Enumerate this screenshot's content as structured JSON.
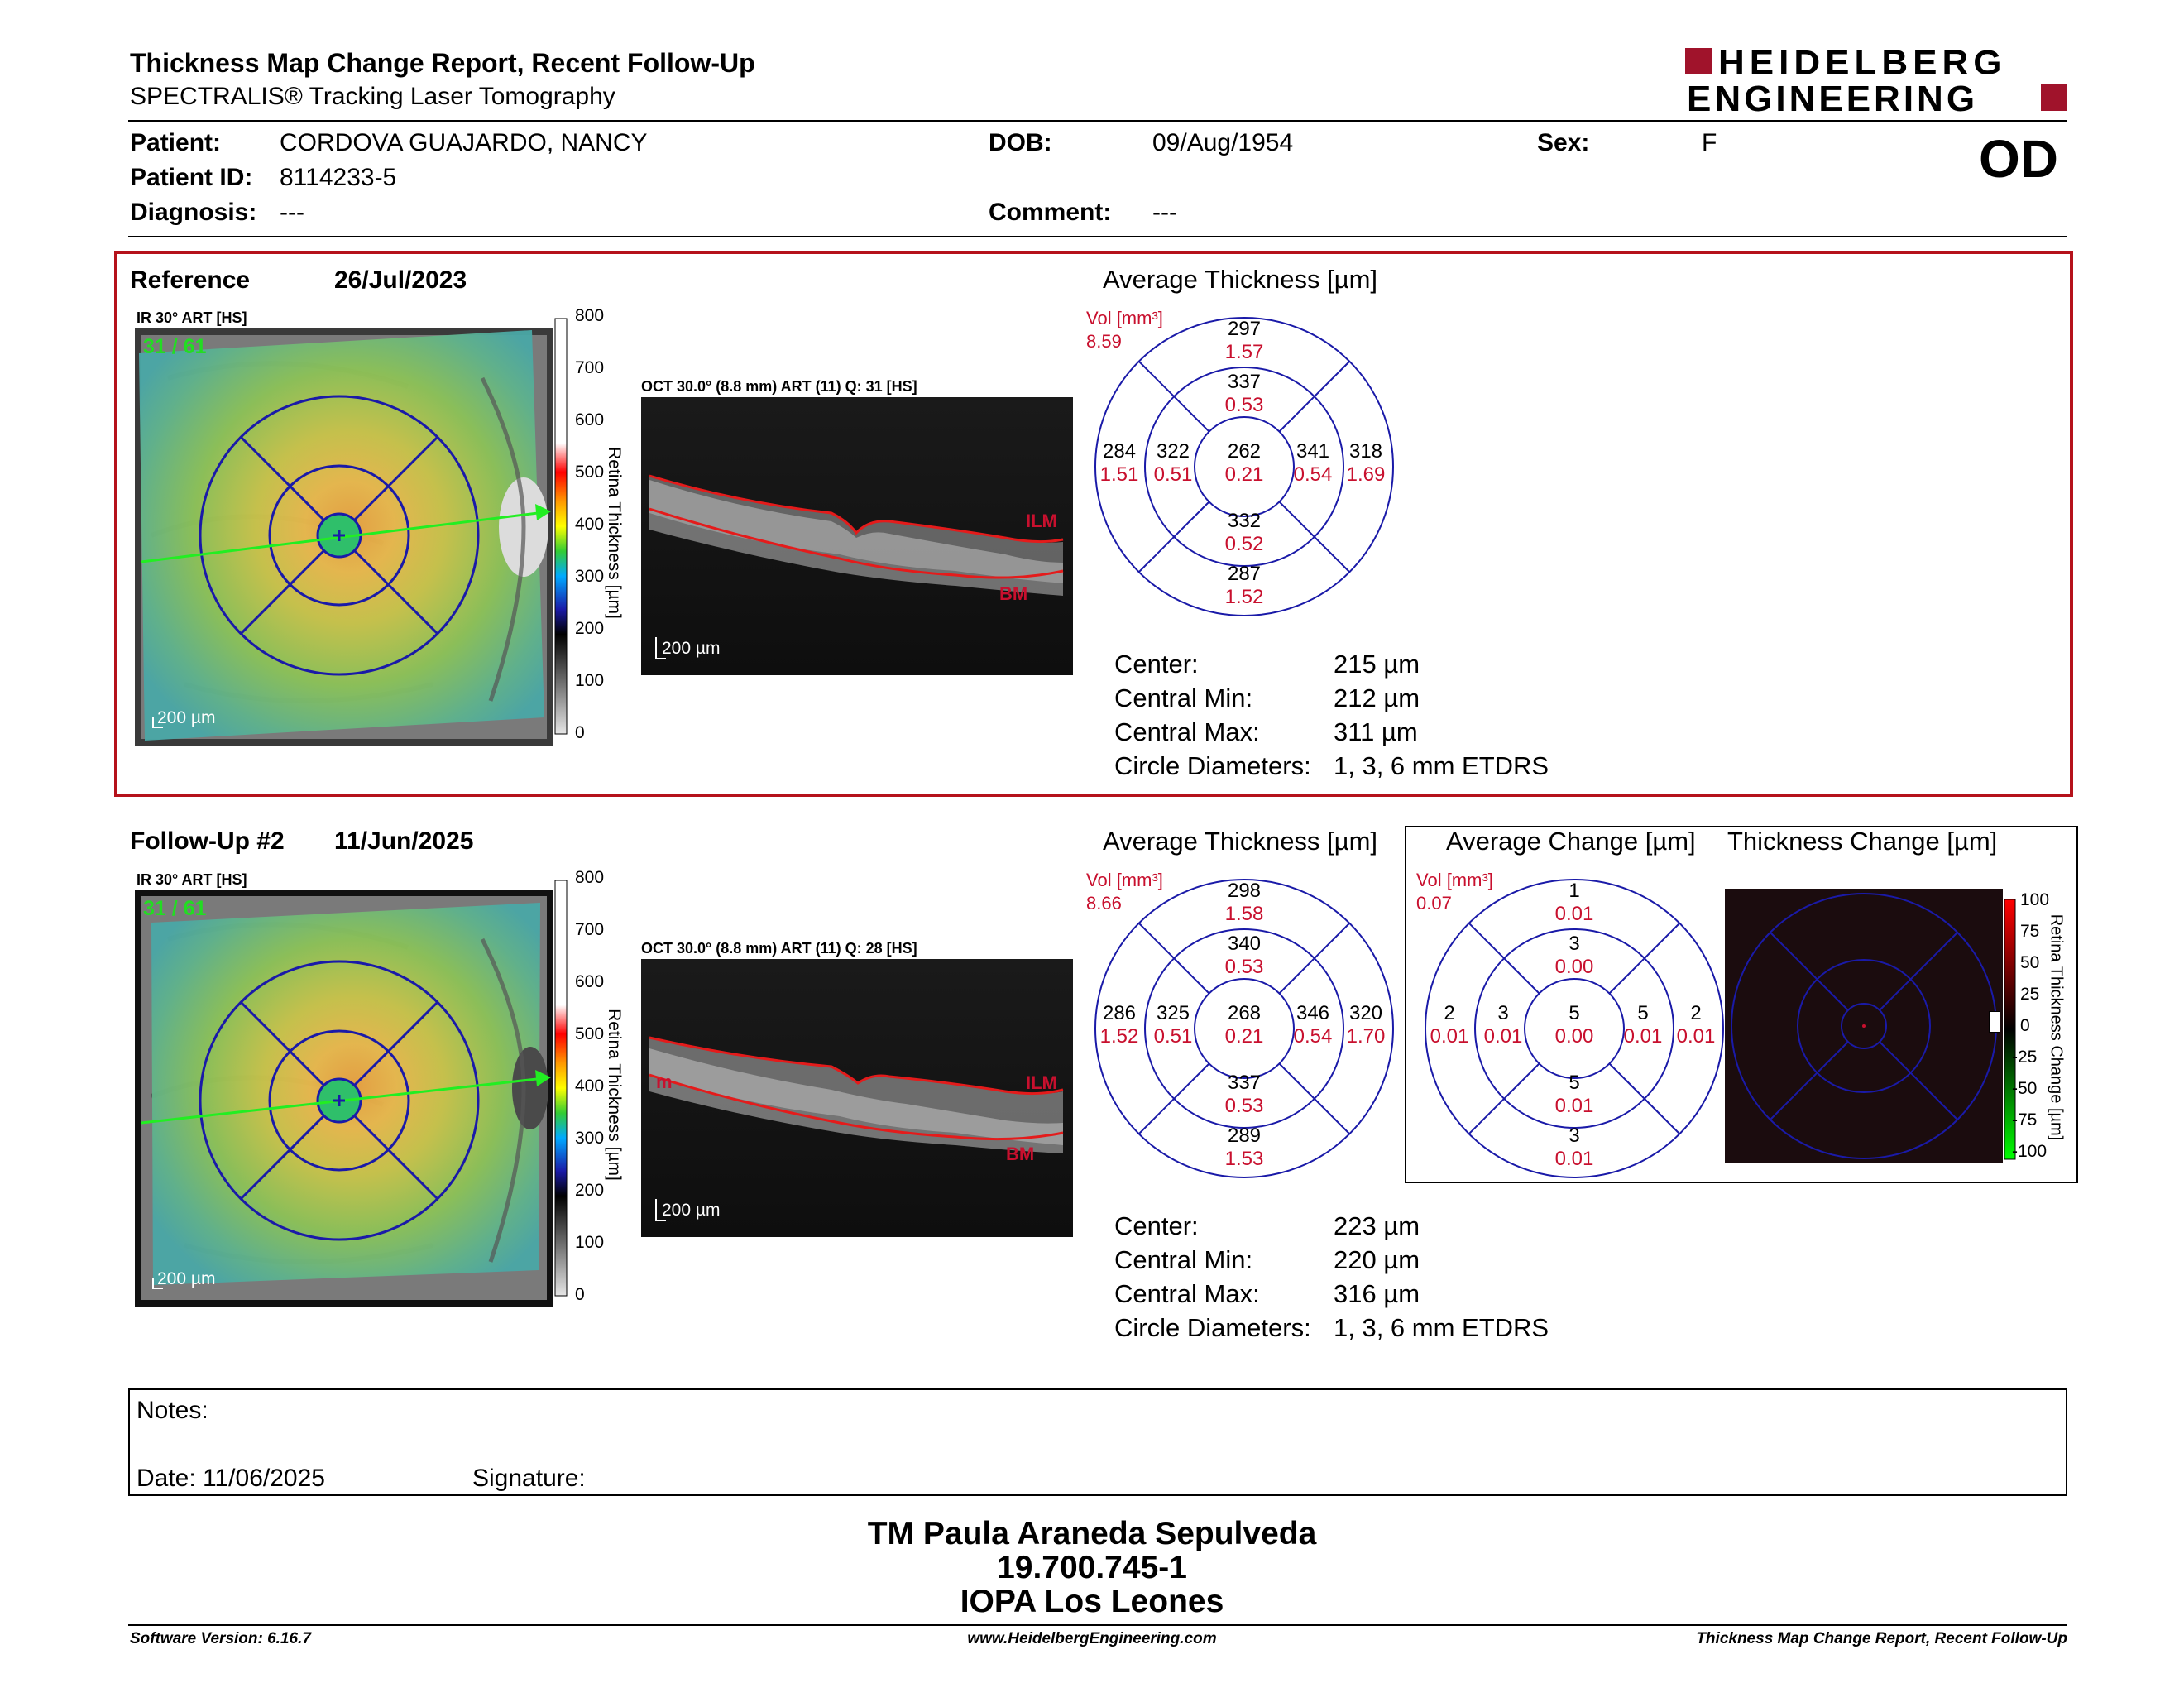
{
  "header": {
    "title": "Thickness Map Change Report, Recent Follow-Up",
    "subtitle": "SPECTRALIS® Tracking Laser Tomography",
    "logo_line1": "HEIDELBERG",
    "logo_line2": "ENGINEERING",
    "eye": "OD"
  },
  "patient": {
    "patient_label": "Patient:",
    "patient_value": "CORDOVA GUAJARDO, NANCY",
    "dob_label": "DOB:",
    "dob_value": "09/Aug/1954",
    "sex_label": "Sex:",
    "sex_value": "F",
    "id_label": "Patient ID:",
    "id_value": "8114233-5",
    "diag_label": "Diagnosis:",
    "diag_value": "---",
    "comment_label": "Comment:",
    "comment_value": "---"
  },
  "reference": {
    "label": "Reference",
    "date": "26/Jul/2023",
    "ir_label": "IR 30° ART [HS]",
    "ir_counter": "31 / 61",
    "ir_scale": "200 µm",
    "oct_label": "OCT 30.0° (8.8 mm) ART (11) Q: 31 [HS]",
    "oct_scale": "200 µm",
    "ilm": "ILM",
    "bm": "BM",
    "avg_title": "Average Thickness [µm]",
    "vol_label": "Vol [mm³]",
    "vol_value": "8.59",
    "grid": {
      "outer_top": "297",
      "outer_top_v": "1.57",
      "inner_top": "337",
      "inner_top_v": "0.53",
      "outer_left": "284",
      "outer_left_v": "1.51",
      "inner_left": "322",
      "inner_left_v": "0.51",
      "center": "262",
      "center_v": "0.21",
      "inner_right": "341",
      "inner_right_v": "0.54",
      "outer_right": "318",
      "outer_right_v": "1.69",
      "inner_bottom": "332",
      "inner_bottom_v": "0.52",
      "outer_bottom": "287",
      "outer_bottom_v": "1.52"
    },
    "stats": {
      "center_label": "Center:",
      "center": "215 µm",
      "min_label": "Central Min:",
      "min": "212 µm",
      "max_label": "Central Max:",
      "max": "311 µm",
      "circ_label": "Circle Diameters:",
      "circ": "1, 3, 6 mm ETDRS"
    }
  },
  "followup": {
    "label": "Follow-Up #2",
    "date": "11/Jun/2025",
    "ir_label": "IR 30° ART [HS]",
    "ir_counter": "31 / 61",
    "ir_scale": "200 µm",
    "oct_label": "OCT 30.0° (8.8 mm) ART (11) Q: 28 [HS]",
    "oct_scale": "200 µm",
    "ilm": "ILM",
    "bm": "BM",
    "m": "m",
    "avg_title": "Average Thickness [µm]",
    "vol_label": "Vol [mm³]",
    "vol_value": "8.66",
    "grid": {
      "outer_top": "298",
      "outer_top_v": "1.58",
      "inner_top": "340",
      "inner_top_v": "0.53",
      "outer_left": "286",
      "outer_left_v": "1.52",
      "inner_left": "325",
      "inner_left_v": "0.51",
      "center": "268",
      "center_v": "0.21",
      "inner_right": "346",
      "inner_right_v": "0.54",
      "outer_right": "320",
      "outer_right_v": "1.70",
      "inner_bottom": "337",
      "inner_bottom_v": "0.53",
      "outer_bottom": "289",
      "outer_bottom_v": "1.53"
    },
    "stats": {
      "center_label": "Center:",
      "center": "223 µm",
      "min_label": "Central Min:",
      "min": "220 µm",
      "max_label": "Central Max:",
      "max": "316 µm",
      "circ_label": "Circle Diameters:",
      "circ": "1, 3, 6 mm ETDRS"
    }
  },
  "change": {
    "avg_title": "Average Change [µm]",
    "map_title": "Thickness Change [µm]",
    "vol_label": "Vol [mm³]",
    "vol_value": "0.07",
    "grid": {
      "outer_top": "1",
      "outer_top_v": "0.01",
      "inner_top": "3",
      "inner_top_v": "0.00",
      "outer_left": "2",
      "outer_left_v": "0.01",
      "inner_left": "3",
      "inner_left_v": "0.01",
      "center": "5",
      "center_v": "0.00",
      "inner_right": "5",
      "inner_right_v": "0.01",
      "outer_right": "2",
      "outer_right_v": "0.01",
      "inner_bottom": "5",
      "inner_bottom_v": "0.01",
      "outer_bottom": "3",
      "outer_bottom_v": "0.01"
    },
    "colorbar_title": "Retina Thickness Change [µm]",
    "ticks": [
      "100",
      "75",
      "50",
      "25",
      "0",
      "-25",
      "-50",
      "-75",
      "-100"
    ]
  },
  "thickness_colorbar": {
    "title": "Retina Thickness [µm]",
    "ticks": [
      "800",
      "700",
      "600",
      "500",
      "400",
      "300",
      "200",
      "100",
      "0"
    ]
  },
  "notes": {
    "notes_label": "Notes:",
    "date_label": "Date: 11/06/2025",
    "signature_label": "Signature:"
  },
  "signer": {
    "name": "TM Paula Araneda Sepulveda",
    "rut": "19.700.745-1",
    "org": "IOPA Los Leones"
  },
  "footer": {
    "version": "Software Version: 6.16.7",
    "website": "www.HeidelbergEngineering.com",
    "report": "Thickness Map Change Report, Recent Follow-Up"
  },
  "colors": {
    "brand_red": "#a0132b",
    "frame_red": "#b5121b",
    "grid_blue": "#1a1aa8",
    "value_red": "#c8102e"
  }
}
